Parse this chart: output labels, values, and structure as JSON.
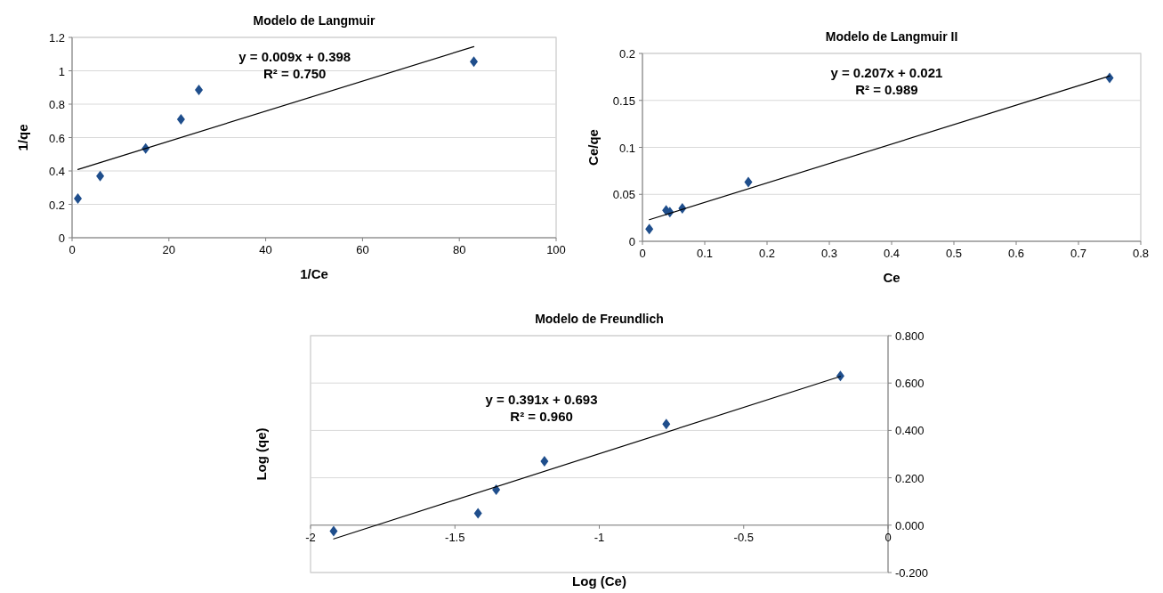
{
  "chart_data": [
    {
      "type": "scatter",
      "title": "Modelo de Langmuir",
      "xlabel": "1/Ce",
      "ylabel": "1/qe",
      "xlim": [
        0,
        100
      ],
      "ylim": [
        0,
        1.2
      ],
      "xticks": [
        0,
        20,
        40,
        60,
        80,
        100
      ],
      "yticks": [
        0,
        0.2,
        0.4,
        0.6,
        0.8,
        1,
        1.2
      ],
      "grid": "y",
      "annotations": [
        "y = 0.009x + 0.398",
        "R² = 0.750"
      ],
      "series": [
        {
          "marker": "diamond",
          "color": "#1f4e8c",
          "x": [
            1.2,
            5.8,
            15.2,
            22.5,
            26.2,
            83
          ],
          "values": [
            0.235,
            0.37,
            0.535,
            0.71,
            0.885,
            1.055
          ]
        },
        {
          "type": "line",
          "marker": "none",
          "color": "#000000",
          "x": [
            1.2,
            83
          ],
          "values": [
            0.409,
            1.145
          ]
        }
      ]
    },
    {
      "type": "scatter",
      "title": "Modelo de Langmuir II",
      "xlabel": "Ce",
      "ylabel": "Ce/qe",
      "xlim": [
        0,
        0.8
      ],
      "ylim": [
        0,
        0.2
      ],
      "xticks": [
        0,
        0.1,
        0.2,
        0.3,
        0.4,
        0.5,
        0.6,
        0.7,
        0.8
      ],
      "yticks": [
        0,
        0.05,
        0.1,
        0.15,
        0.2
      ],
      "grid": "y",
      "annotations": [
        "y = 0.207x + 0.021",
        "R² = 0.989"
      ],
      "series": [
        {
          "marker": "diamond",
          "color": "#1f4e8c",
          "x": [
            0.011,
            0.038,
            0.044,
            0.064,
            0.17,
            0.75
          ],
          "values": [
            0.013,
            0.033,
            0.031,
            0.035,
            0.063,
            0.174
          ]
        },
        {
          "type": "line",
          "marker": "none",
          "color": "#000000",
          "x": [
            0.011,
            0.75
          ],
          "values": [
            0.023,
            0.176
          ]
        }
      ]
    },
    {
      "type": "scatter",
      "title": "Modelo de Freundlich",
      "xlabel": "Log (Ce)",
      "ylabel": "Log (qe)",
      "xlim": [
        -2,
        0
      ],
      "ylim": [
        -0.2,
        0.8
      ],
      "xticks": [
        -2,
        -1.5,
        -1,
        -0.5,
        0
      ],
      "yticks": [
        {
          "value": -0.2,
          "label": "-0.200"
        },
        {
          "value": 0,
          "label": "0.000"
        },
        {
          "value": 0.2,
          "label": "0.200"
        },
        {
          "value": 0.4,
          "label": "0.400"
        },
        {
          "value": 0.6,
          "label": "0.600"
        },
        {
          "value": 0.8,
          "label": "0.800"
        }
      ],
      "grid": "y",
      "annotations": [
        "y = 0.391x + 0.693",
        "R² = 0.960"
      ],
      "series": [
        {
          "marker": "diamond",
          "color": "#1f4e8c",
          "x": [
            -1.92,
            -1.42,
            -1.357,
            -1.19,
            -0.768,
            -0.165
          ],
          "values": [
            -0.025,
            0.05,
            0.15,
            0.27,
            0.427,
            0.63
          ]
        },
        {
          "type": "line",
          "marker": "none",
          "color": "#000000",
          "x": [
            -1.92,
            -0.165
          ],
          "values": [
            -0.058,
            0.628
          ]
        }
      ]
    }
  ]
}
